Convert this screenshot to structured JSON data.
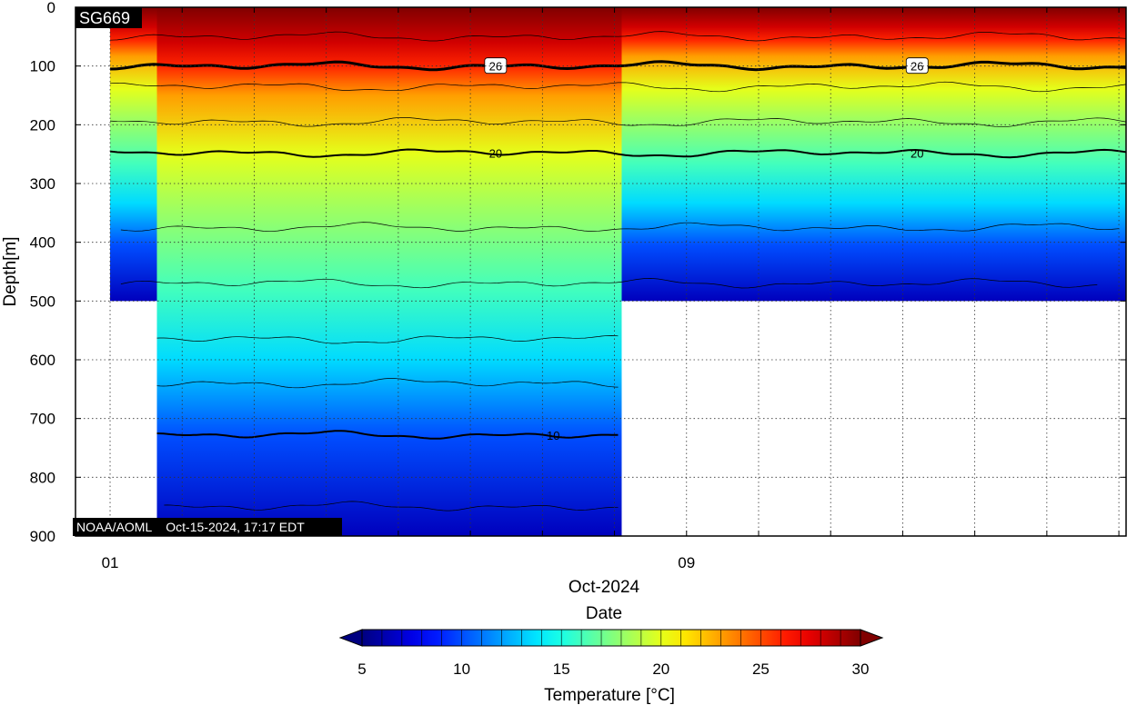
{
  "chart_data": {
    "type": "heatmap",
    "title_badge": "SG669",
    "footer": "NOAA/AOML    Oct-15-2024, 17:17 EDT",
    "xlabel": "Date",
    "x_month": "Oct-2024",
    "x_ticks": [
      {
        "day": 1,
        "label": "01"
      },
      {
        "day": 9,
        "label": "09"
      }
    ],
    "xlim_days": [
      0.52,
      15.1
    ],
    "ylabel": "Depth[m]",
    "ylim": [
      0,
      900
    ],
    "y_ticks": [
      0,
      100,
      200,
      300,
      400,
      500,
      600,
      700,
      800,
      900
    ],
    "y_tick_labels": [
      "0",
      "100",
      "200",
      "300",
      "400",
      "500",
      "600",
      "700",
      "800",
      "900"
    ],
    "grid": true,
    "colorbar": {
      "label": "Temperature [°C]",
      "min": 5,
      "max": 30,
      "ticks": [
        5,
        10,
        15,
        20,
        25,
        30
      ],
      "tick_labels": [
        "5",
        "10",
        "15",
        "20",
        "25",
        "30"
      ],
      "colormap": "jet",
      "extend": "both"
    },
    "coverage": {
      "shallow_segment_days": [
        1.0,
        15.1
      ],
      "shallow_max_depth": 500,
      "deep_segment_days": [
        1.65,
        8.1
      ],
      "deep_max_depth": 900
    },
    "temperature_profile": [
      {
        "depth": 0,
        "temp": 30
      },
      {
        "depth": 60,
        "temp": 28
      },
      {
        "depth": 100,
        "temp": 26
      },
      {
        "depth": 150,
        "temp": 23
      },
      {
        "depth": 250,
        "temp": 20
      },
      {
        "depth": 330,
        "temp": 18.5
      },
      {
        "depth": 480,
        "temp": 16
      },
      {
        "depth": 600,
        "temp": 13.5
      },
      {
        "depth": 730,
        "temp": 10
      },
      {
        "depth": 900,
        "temp": 6.5
      }
    ],
    "contours": [
      {
        "level": 26,
        "mean_depth": 100,
        "bold": true,
        "labels_at_days": [
          6.35,
          12.2
        ]
      },
      {
        "level": 20,
        "mean_depth": 248,
        "bold": true,
        "labels_at_days": [
          6.35,
          12.2
        ]
      },
      {
        "level": 10,
        "mean_depth": 728,
        "bold": true,
        "labels_at_days": [
          7.15
        ]
      }
    ]
  }
}
